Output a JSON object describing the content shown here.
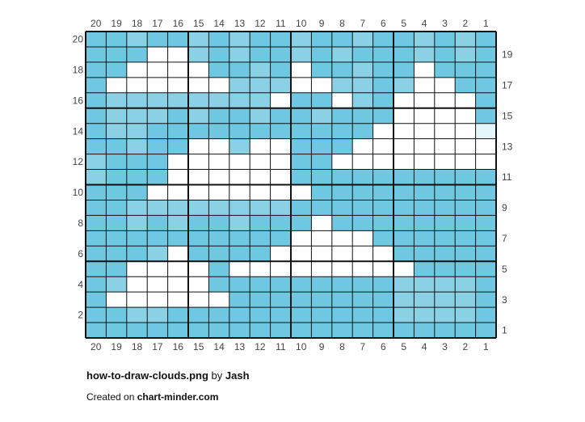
{
  "header": {
    "columns": [
      20,
      19,
      18,
      17,
      16,
      15,
      14,
      13,
      12,
      11,
      10,
      9,
      8,
      7,
      6,
      5,
      4,
      3,
      2,
      1
    ],
    "rows": [
      20,
      19,
      18,
      17,
      16,
      15,
      14,
      13,
      12,
      11,
      10,
      9,
      8,
      7,
      6,
      5,
      4,
      3,
      2,
      1
    ]
  },
  "footer": {
    "file": "how-to-draw-clouds.png",
    "by": "by",
    "author": "Jash",
    "created": "Created on",
    "site": "chart-minder.com"
  }
}
